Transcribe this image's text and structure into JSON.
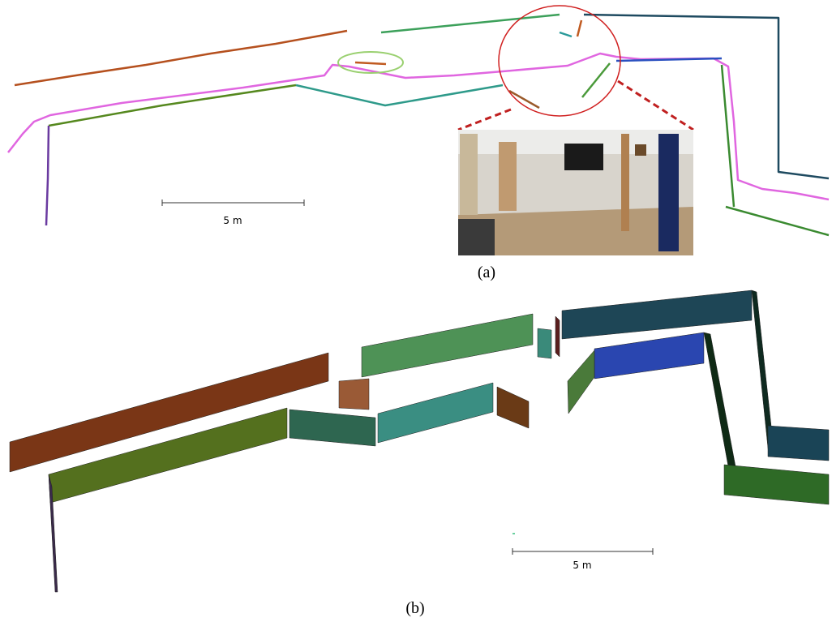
{
  "panel_a": {
    "scale_label": "5 m",
    "caption": "(a)"
  },
  "panel_b": {
    "scale_label": "5 m",
    "caption": "(b)"
  }
}
